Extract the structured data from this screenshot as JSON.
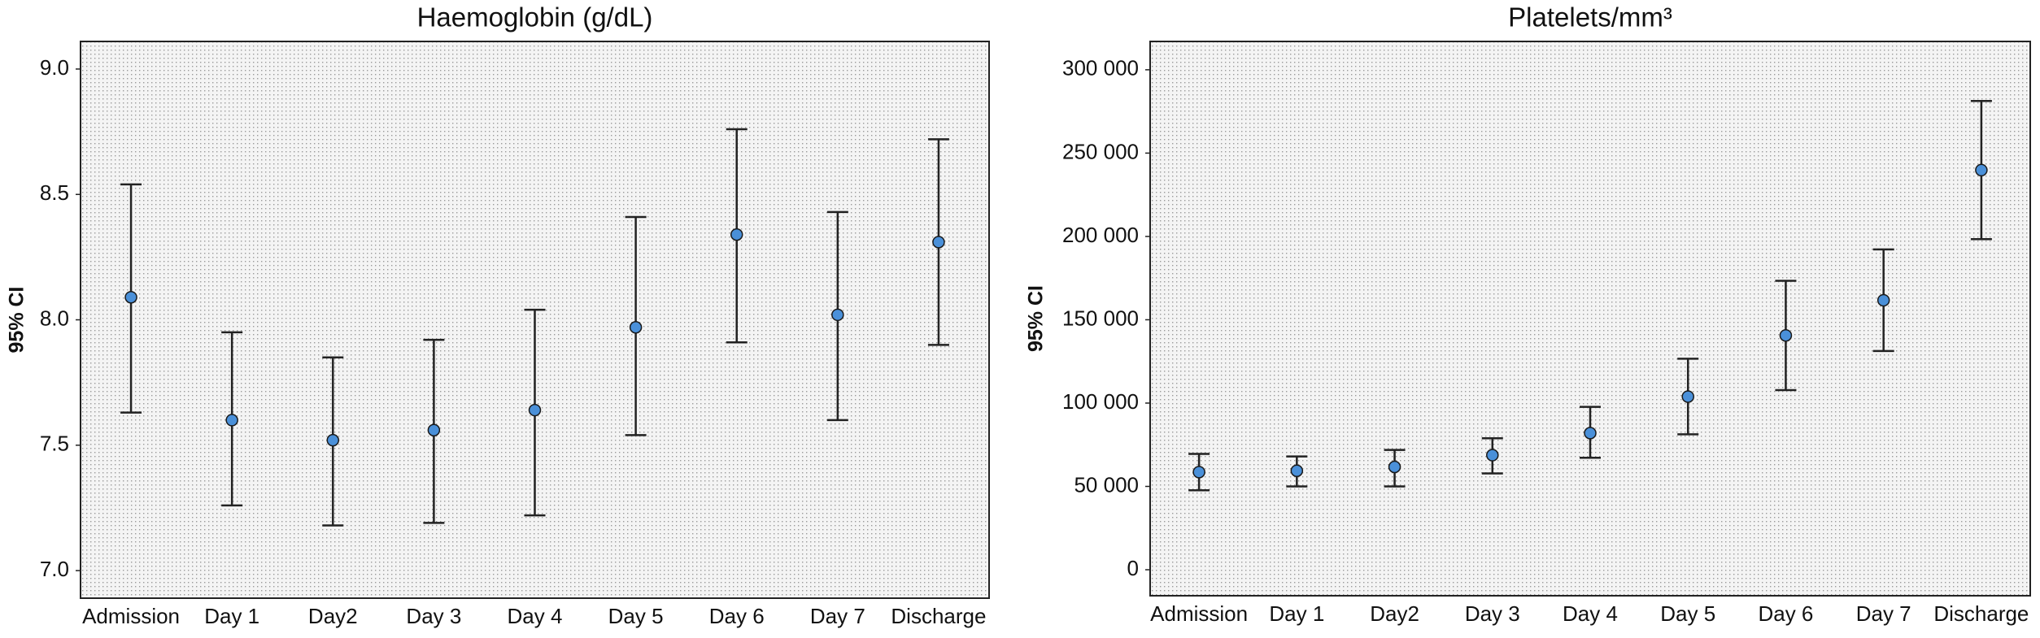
{
  "chart_data": [
    {
      "type": "errorbar",
      "title": "Haemoglobin (g/dL)",
      "y_label": "95% CI",
      "categories": [
        "Admission",
        "Day 1",
        "Day2",
        "Day 3",
        "Day 4",
        "Day 5",
        "Day 6",
        "Day 7",
        "Discharge"
      ],
      "series": [
        {
          "color": "#4a90d9",
          "values": [
            8.09,
            7.6,
            7.52,
            7.56,
            7.64,
            7.97,
            8.34,
            8.02,
            8.31
          ],
          "lower": [
            7.63,
            7.26,
            7.18,
            7.19,
            7.22,
            7.54,
            7.91,
            7.6,
            7.9
          ],
          "upper": [
            8.54,
            7.95,
            7.85,
            7.92,
            8.04,
            8.41,
            8.76,
            8.43,
            8.72
          ]
        }
      ],
      "ylim": [
        6.89,
        9.11
      ],
      "yticks": [
        {
          "value": 7,
          "label": "7.0"
        },
        7.5,
        {
          "value": 8,
          "label": "8.0"
        },
        8.5,
        {
          "value": 9,
          "label": "9.0"
        }
      ]
    },
    {
      "type": "errorbar",
      "title": "Platelets/mm³",
      "y_label": "95% CI",
      "categories": [
        "Admission",
        "Day 1",
        "Day2",
        "Day 3",
        "Day 4",
        "Day 5",
        "Day 6",
        "Day 7",
        "Discharge"
      ],
      "series": [
        {
          "color": "#4a90d9",
          "values": [
            58600,
            59400,
            61700,
            68750,
            82000,
            103900,
            140600,
            161700,
            239800
          ],
          "lower": [
            47700,
            50000,
            50000,
            57800,
            67200,
            81250,
            107800,
            131250,
            198400
          ],
          "upper": [
            69500,
            68000,
            71900,
            78900,
            97700,
            126600,
            173400,
            192200,
            281250
          ]
        }
      ],
      "ylim": [
        -15600,
        317000
      ],
      "yticks": [
        0,
        {
          "value": 50000,
          "label": "50 000"
        },
        {
          "value": 100000,
          "label": "100 000"
        },
        {
          "value": 150000,
          "label": "150 000"
        },
        {
          "value": 200000,
          "label": "200 000"
        },
        {
          "value": 250000,
          "label": "250 000"
        },
        {
          "value": 300000,
          "label": "300 000"
        }
      ]
    }
  ]
}
